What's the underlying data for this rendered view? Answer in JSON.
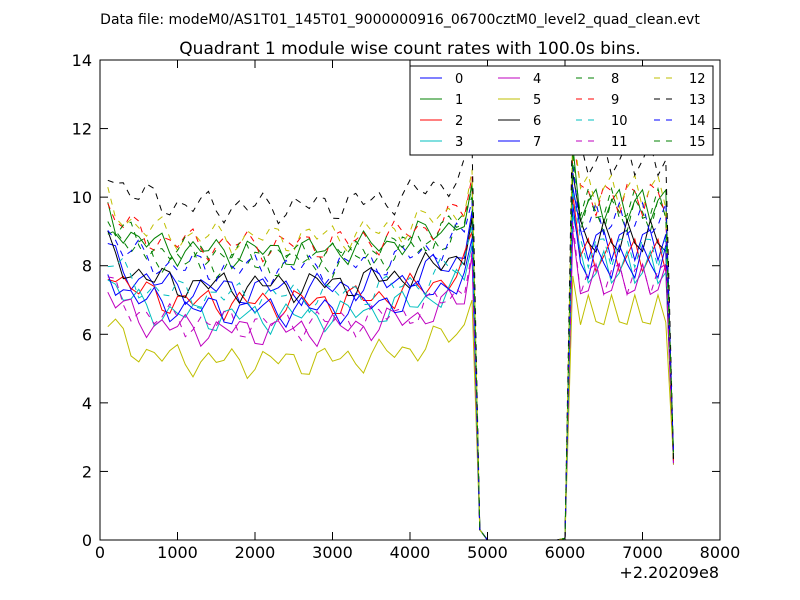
{
  "chart_data": {
    "type": "line",
    "suptitle": "Data file: modeM0/AS1T01_145T01_9000000916_06700cztM0_level2_quad_clean.evt",
    "title": "Quadrant 1 module wise count rates with 100.0s bins.",
    "xlabel": "",
    "ylabel": "",
    "xlim": [
      0,
      8000
    ],
    "ylim": [
      0,
      14
    ],
    "xticks": [
      "0",
      "1000",
      "2000",
      "3000",
      "4000",
      "5000",
      "6000",
      "7000",
      "8000"
    ],
    "yticks": [
      "0",
      "2",
      "4",
      "6",
      "8",
      "10",
      "12",
      "14"
    ],
    "x_offset_label": "+2.20209e8",
    "grid": false,
    "legend_position": "top-right",
    "legend_columns": 4,
    "x": [
      100,
      200,
      300,
      400,
      500,
      600,
      700,
      800,
      900,
      1000,
      1100,
      1200,
      1300,
      1400,
      1500,
      1600,
      1700,
      1800,
      1900,
      2000,
      2100,
      2200,
      2300,
      2400,
      2500,
      2600,
      2700,
      2800,
      2900,
      3000,
      3100,
      3200,
      3300,
      3400,
      3500,
      3600,
      3700,
      3800,
      3900,
      4000,
      4100,
      4200,
      4300,
      4400,
      4500,
      4600,
      4700,
      4800,
      4900,
      5000,
      5100,
      5200,
      5300,
      5400,
      5500,
      5600,
      5700,
      5800,
      5900,
      6000,
      6100,
      6200,
      6300,
      6400,
      6500,
      6600,
      6700,
      6800,
      6900,
      7000,
      7100,
      7200,
      7300,
      7400
    ],
    "series": [
      {
        "name": "0",
        "color": "#0000ff",
        "dash": "solid",
        "base": 7.3,
        "peak1": 9.6,
        "peak2": 10.1
      },
      {
        "name": "1",
        "color": "#008000",
        "dash": "solid",
        "base": 8.4,
        "peak1": 10.4,
        "peak2": 11.3
      },
      {
        "name": "2",
        "color": "#ff0000",
        "dash": "solid",
        "base": 6.9,
        "peak1": 9.0,
        "peak2": 9.9
      },
      {
        "name": "3",
        "color": "#00bfbf",
        "dash": "solid",
        "base": 6.5,
        "peak1": 8.6,
        "peak2": 9.3
      },
      {
        "name": "4",
        "color": "#bf00bf",
        "dash": "solid",
        "base": 6.1,
        "peak1": 8.3,
        "peak2": 8.8
      },
      {
        "name": "5",
        "color": "#bfbf00",
        "dash": "solid",
        "base": 5.2,
        "peak1": 7.0,
        "peak2": 7.5
      },
      {
        "name": "6",
        "color": "#000000",
        "dash": "solid",
        "base": 7.4,
        "peak1": 9.4,
        "peak2": 10.5
      },
      {
        "name": "7",
        "color": "#0000ff",
        "dash": "solid",
        "base": 6.7,
        "peak1": 8.8,
        "peak2": 9.6
      },
      {
        "name": "8",
        "color": "#008000",
        "dash": "dashed",
        "base": 8.1,
        "peak1": 10.0,
        "peak2": 10.8
      },
      {
        "name": "9",
        "color": "#ff0000",
        "dash": "dashed",
        "base": 8.6,
        "peak1": 10.6,
        "peak2": 11.5
      },
      {
        "name": "10",
        "color": "#00bfbf",
        "dash": "dashed",
        "base": 7.1,
        "peak1": 9.2,
        "peak2": 10.0
      },
      {
        "name": "11",
        "color": "#bf00bf",
        "dash": "dashed",
        "base": 6.3,
        "peak1": 8.4,
        "peak2": 9.1
      },
      {
        "name": "12",
        "color": "#bfbf00",
        "dash": "dashed",
        "base": 8.8,
        "peak1": 10.8,
        "peak2": 11.9
      },
      {
        "name": "13",
        "color": "#000000",
        "dash": "dashed",
        "base": 9.7,
        "peak1": 11.6,
        "peak2": 12.6
      },
      {
        "name": "14",
        "color": "#0000ff",
        "dash": "dashed",
        "base": 7.9,
        "peak1": 9.9,
        "peak2": 10.7
      },
      {
        "name": "15",
        "color": "#008000",
        "dash": "dashed",
        "base": 8.3,
        "peak1": 10.3,
        "peak2": 11.0
      }
    ]
  }
}
